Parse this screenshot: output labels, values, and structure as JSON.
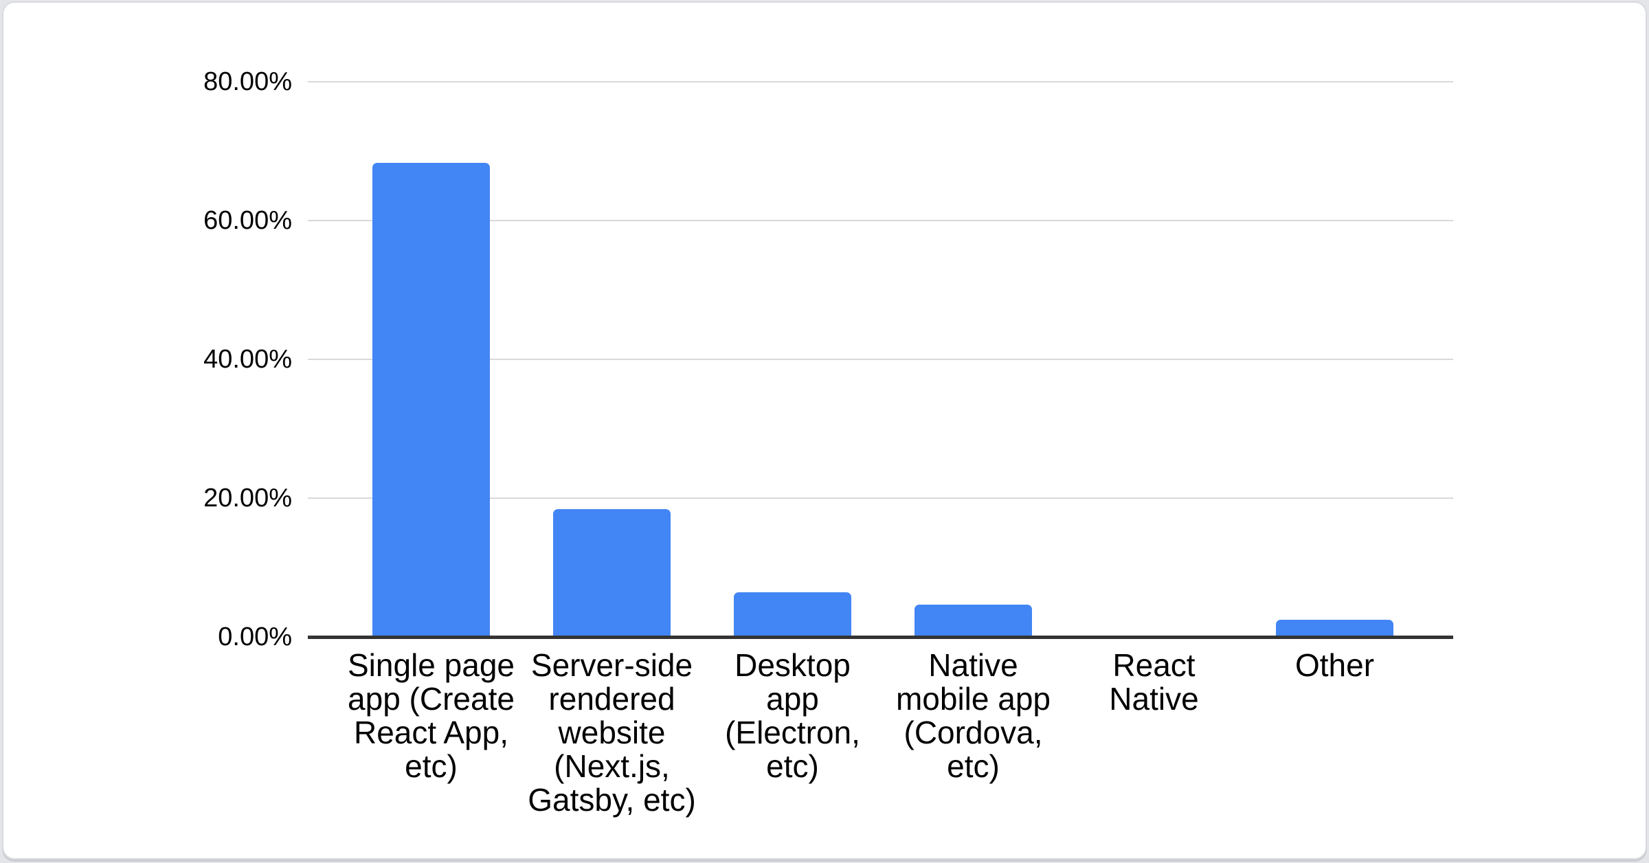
{
  "chart_data": {
    "type": "bar",
    "title": "",
    "xlabel": "",
    "ylabel": "",
    "categories": [
      "Single page\napp (Create\nReact App,\netc)",
      "Server-side\nrendered\nwebsite\n(Next.js,\nGatsby, etc)",
      "Desktop\napp\n(Electron,\netc)",
      "Native\nmobile app\n(Cordova,\netc)",
      "React\nNative",
      "Other"
    ],
    "values": [
      68.3,
      18.4,
      6.4,
      4.7,
      0,
      2.5
    ],
    "value_unit": "%",
    "ylim": [
      0,
      80
    ],
    "ytick_step": 20,
    "yticks": [
      "80.00%",
      "60.00%",
      "40.00%",
      "20.00%",
      "0.00%"
    ],
    "grid": true,
    "legend": "none",
    "colors": {
      "bar": "#4285f4",
      "gridline": "#d9d9d9",
      "axis": "#333333",
      "label_text": "#000000",
      "card_border": "#d8dade",
      "card_background": "#ffffff"
    }
  }
}
